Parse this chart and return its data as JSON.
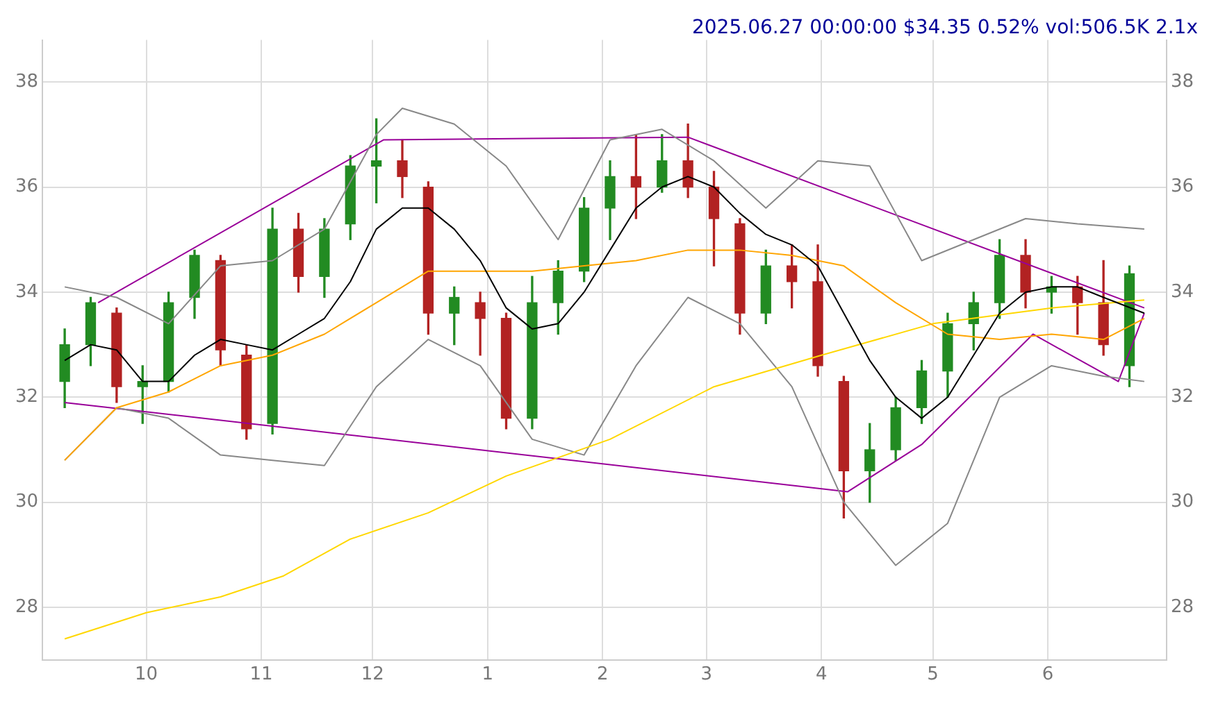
{
  "chart_data": {
    "type": "candlestick",
    "title": "2025.06.27 00:00:00 $34.35 0.52% vol:506.5K 2.1x",
    "x": [
      "2024-09-09",
      "2024-09-16",
      "2024-09-23",
      "2024-09-30",
      "2024-10-07",
      "2024-10-14",
      "2024-10-21",
      "2024-10-28",
      "2024-11-04",
      "2024-11-11",
      "2024-11-18",
      "2024-11-25",
      "2024-12-02",
      "2024-12-09",
      "2024-12-16",
      "2024-12-23",
      "2024-12-30",
      "2025-01-06",
      "2025-01-13",
      "2025-01-20",
      "2025-01-27",
      "2025-02-03",
      "2025-02-10",
      "2025-02-17",
      "2025-02-24",
      "2025-03-03",
      "2025-03-10",
      "2025-03-17",
      "2025-03-24",
      "2025-03-31",
      "2025-04-07",
      "2025-04-14",
      "2025-04-21",
      "2025-04-28",
      "2025-05-05",
      "2025-05-12",
      "2025-05-19",
      "2025-05-26",
      "2025-06-02",
      "2025-06-09",
      "2025-06-16",
      "2025-06-23"
    ],
    "ohlc": [
      [
        32.3,
        33.3,
        31.8,
        33.0
      ],
      [
        33.0,
        33.9,
        32.6,
        33.8
      ],
      [
        33.6,
        33.7,
        31.9,
        32.2
      ],
      [
        32.2,
        32.6,
        31.5,
        32.3
      ],
      [
        32.3,
        34.0,
        32.1,
        33.8
      ],
      [
        33.9,
        34.8,
        33.5,
        34.7
      ],
      [
        34.6,
        34.7,
        32.6,
        32.9
      ],
      [
        32.8,
        33.0,
        31.2,
        31.4
      ],
      [
        31.5,
        35.6,
        31.3,
        35.2
      ],
      [
        35.2,
        35.5,
        34.0,
        34.3
      ],
      [
        34.3,
        35.4,
        33.9,
        35.2
      ],
      [
        35.3,
        36.6,
        35.0,
        36.4
      ],
      [
        36.4,
        37.3,
        35.7,
        36.5
      ],
      [
        36.5,
        36.9,
        35.8,
        36.2
      ],
      [
        36.0,
        36.1,
        33.2,
        33.6
      ],
      [
        33.6,
        34.1,
        33.0,
        33.9
      ],
      [
        33.8,
        34.0,
        32.8,
        33.5
      ],
      [
        33.5,
        33.6,
        31.4,
        31.6
      ],
      [
        31.6,
        34.3,
        31.4,
        33.8
      ],
      [
        33.8,
        34.6,
        33.2,
        34.4
      ],
      [
        34.4,
        35.8,
        34.2,
        35.6
      ],
      [
        35.6,
        36.5,
        35.0,
        36.2
      ],
      [
        36.2,
        37.0,
        35.4,
        36.0
      ],
      [
        36.0,
        37.0,
        35.9,
        36.5
      ],
      [
        36.5,
        37.2,
        35.8,
        36.0
      ],
      [
        36.0,
        36.3,
        34.5,
        35.4
      ],
      [
        35.3,
        35.4,
        33.2,
        33.6
      ],
      [
        33.6,
        34.8,
        33.4,
        34.5
      ],
      [
        34.5,
        34.9,
        33.7,
        34.2
      ],
      [
        34.2,
        34.9,
        32.4,
        32.6
      ],
      [
        32.3,
        32.4,
        29.7,
        30.6
      ],
      [
        30.6,
        31.5,
        30.0,
        31.0
      ],
      [
        31.0,
        32.0,
        30.8,
        31.8
      ],
      [
        31.8,
        32.7,
        31.5,
        32.5
      ],
      [
        32.5,
        33.6,
        32.0,
        33.4
      ],
      [
        33.4,
        34.0,
        32.9,
        33.8
      ],
      [
        33.8,
        35.0,
        33.5,
        34.7
      ],
      [
        34.7,
        35.0,
        33.7,
        34.0
      ],
      [
        34.0,
        34.3,
        33.6,
        34.1
      ],
      [
        34.1,
        34.3,
        33.2,
        33.8
      ],
      [
        33.8,
        34.6,
        32.8,
        33.0
      ],
      [
        32.6,
        34.5,
        32.2,
        34.35
      ]
    ],
    "series": [
      {
        "type": "line",
        "color": "#000000",
        "x": [
          "2024-09-09",
          "2024-09-16",
          "2024-09-23",
          "2024-09-30",
          "2024-10-07",
          "2024-10-14",
          "2024-10-21",
          "2024-10-28",
          "2024-11-04",
          "2024-11-11",
          "2024-11-18",
          "2024-11-25",
          "2024-12-02",
          "2024-12-09",
          "2024-12-16",
          "2024-12-23",
          "2024-12-30",
          "2025-01-06",
          "2025-01-13",
          "2025-01-20",
          "2025-01-27",
          "2025-02-03",
          "2025-02-10",
          "2025-02-17",
          "2025-02-24",
          "2025-03-03",
          "2025-03-10",
          "2025-03-17",
          "2025-03-24",
          "2025-03-31",
          "2025-04-07",
          "2025-04-14",
          "2025-04-21",
          "2025-04-28",
          "2025-05-05",
          "2025-05-12",
          "2025-05-19",
          "2025-05-26",
          "2025-06-02",
          "2025-06-09",
          "2025-06-16",
          "2025-06-27"
        ],
        "values": [
          32.7,
          33.0,
          32.9,
          32.3,
          32.3,
          32.8,
          33.1,
          33.0,
          32.9,
          33.2,
          33.5,
          34.2,
          35.2,
          35.6,
          35.6,
          35.2,
          34.6,
          33.7,
          33.3,
          33.4,
          34.0,
          34.8,
          35.6,
          36.0,
          36.2,
          36.0,
          35.5,
          35.1,
          34.9,
          34.5,
          33.6,
          32.7,
          32.0,
          31.6,
          32.0,
          32.8,
          33.6,
          34.0,
          34.1,
          34.1,
          33.9,
          33.6
        ]
      },
      {
        "type": "line",
        "color": "#ffa500",
        "x": [
          "2024-09-09",
          "2024-09-23",
          "2024-10-07",
          "2024-10-21",
          "2024-11-04",
          "2024-11-18",
          "2024-12-02",
          "2024-12-16",
          "2024-12-30",
          "2025-01-13",
          "2025-01-27",
          "2025-02-10",
          "2025-02-24",
          "2025-03-10",
          "2025-03-24",
          "2025-04-07",
          "2025-04-21",
          "2025-05-05",
          "2025-05-19",
          "2025-06-02",
          "2025-06-16",
          "2025-06-27"
        ],
        "values": [
          30.8,
          31.8,
          32.1,
          32.6,
          32.8,
          33.2,
          33.8,
          34.4,
          34.4,
          34.4,
          34.5,
          34.6,
          34.8,
          34.8,
          34.7,
          34.5,
          33.8,
          33.2,
          33.1,
          33.2,
          33.1,
          33.5
        ]
      },
      {
        "type": "line",
        "color": "#ffd700",
        "x": [
          "2024-09-09",
          "2024-10-01",
          "2024-10-21",
          "2024-11-07",
          "2024-11-25",
          "2024-12-16",
          "2025-01-06",
          "2025-02-03",
          "2025-03-03",
          "2025-04-01",
          "2025-05-01",
          "2025-06-02",
          "2025-06-27"
        ],
        "values": [
          27.4,
          27.9,
          28.2,
          28.6,
          29.3,
          29.8,
          30.5,
          31.2,
          32.2,
          32.8,
          33.4,
          33.7,
          33.85
        ]
      },
      {
        "type": "line",
        "color": "#888888",
        "x": [
          "2024-09-09",
          "2024-09-23",
          "2024-10-07",
          "2024-10-21",
          "2024-11-04",
          "2024-11-18",
          "2024-12-02",
          "2024-12-09",
          "2024-12-23",
          "2025-01-06",
          "2025-01-20",
          "2025-02-03",
          "2025-02-17",
          "2025-03-03",
          "2025-03-17",
          "2025-03-31",
          "2025-04-14",
          "2025-04-28",
          "2025-05-12",
          "2025-05-26",
          "2025-06-09",
          "2025-06-27"
        ],
        "values": [
          34.1,
          33.9,
          33.4,
          34.5,
          34.6,
          35.2,
          37.0,
          37.5,
          37.2,
          36.4,
          35.0,
          36.9,
          37.1,
          36.5,
          35.6,
          36.5,
          36.4,
          34.6,
          35.0,
          35.4,
          35.3,
          35.2
        ]
      },
      {
        "type": "line",
        "color": "#888888",
        "x": [
          "2024-09-09",
          "2024-09-23",
          "2024-10-07",
          "2024-10-21",
          "2024-11-04",
          "2024-11-18",
          "2024-12-02",
          "2024-12-16",
          "2024-12-30",
          "2025-01-13",
          "2025-01-27",
          "2025-02-10",
          "2025-02-24",
          "2025-03-10",
          "2025-03-24",
          "2025-04-07",
          "2025-04-21",
          "2025-05-05",
          "2025-05-19",
          "2025-06-02",
          "2025-06-16",
          "2025-06-27"
        ],
        "values": [
          30.8,
          31.8,
          31.6,
          30.9,
          30.8,
          30.7,
          32.2,
          33.1,
          32.6,
          31.2,
          30.9,
          32.6,
          33.9,
          33.4,
          32.2,
          30.0,
          28.8,
          29.6,
          32.0,
          32.6,
          32.4,
          32.3
        ]
      },
      {
        "type": "line",
        "color": "#990099",
        "x": [
          "2024-09-18",
          "2024-12-04",
          "2025-02-24",
          "2025-06-27"
        ],
        "values": [
          33.8,
          36.9,
          36.95,
          33.7
        ]
      },
      {
        "type": "line",
        "color": "#990099",
        "x": [
          "2024-09-09",
          "2025-04-08",
          "2025-04-28",
          "2025-05-28",
          "2025-06-20",
          "2025-06-27"
        ],
        "values": [
          31.9,
          30.2,
          31.1,
          33.2,
          32.3,
          33.6
        ]
      }
    ],
    "xticks": [
      {
        "value": "2024-10-01",
        "label": "10"
      },
      {
        "value": "2024-11-01",
        "label": "11"
      },
      {
        "value": "2024-12-01",
        "label": "12"
      },
      {
        "value": "2025-01-01",
        "label": "1"
      },
      {
        "value": "2025-02-01",
        "label": "2"
      },
      {
        "value": "2025-03-01",
        "label": "3"
      },
      {
        "value": "2025-04-01",
        "label": "4"
      },
      {
        "value": "2025-05-01",
        "label": "5"
      },
      {
        "value": "2025-06-01",
        "label": "6"
      }
    ],
    "xlim": [
      "2024-09-03",
      "2025-07-03"
    ],
    "ylim": [
      27,
      38.8
    ],
    "yticks": [
      28,
      30,
      32,
      34,
      36,
      38
    ],
    "y2lim": [
      27,
      38.8
    ],
    "y2ticks": [
      28,
      30,
      32,
      34,
      36,
      38
    ],
    "grid": true,
    "legend": false
  }
}
